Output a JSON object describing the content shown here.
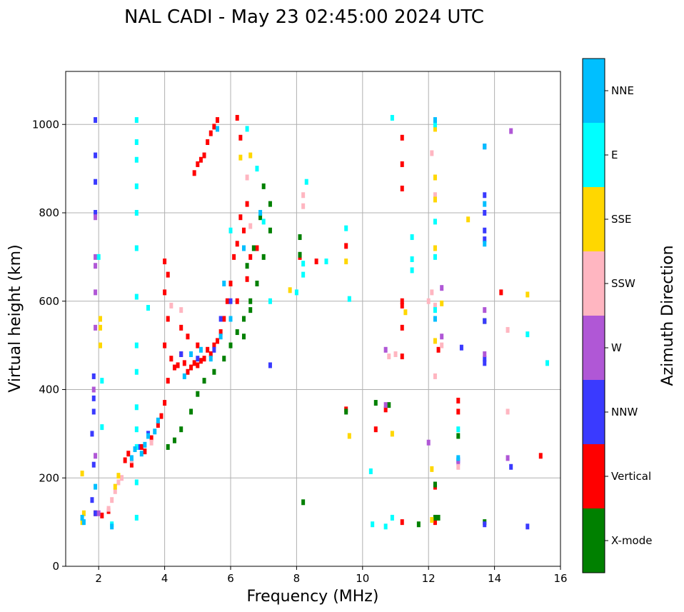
{
  "chart_data": {
    "type": "scatter",
    "title": "NAL CADI - May 23 02:45:00 2024 UTC",
    "xlabel": "Frequency (MHz)",
    "ylabel": "Virtual height (km)",
    "xlim": [
      1,
      16
    ],
    "ylim": [
      0,
      1120
    ],
    "xticks": [
      2,
      4,
      6,
      8,
      10,
      12,
      14,
      16
    ],
    "yticks": [
      0,
      200,
      400,
      600,
      800,
      1000
    ],
    "grid": true,
    "colorbar": {
      "label": "Azimuth Direction",
      "position": "right",
      "categories": [
        {
          "name": "X-mode",
          "color": "#008000"
        },
        {
          "name": "Vertical",
          "color": "#ff0000"
        },
        {
          "name": "NNW",
          "color": "#3a3aff"
        },
        {
          "name": "W",
          "color": "#b057d6"
        },
        {
          "name": "SSW",
          "color": "#ffb6c1"
        },
        {
          "name": "SSE",
          "color": "#ffd700"
        },
        {
          "name": "E",
          "color": "#00ffff"
        },
        {
          "name": "NNE",
          "color": "#00bfff"
        }
      ]
    },
    "series": [
      {
        "name": "Vertical",
        "color": "#ff0000",
        "points": [
          [
            1.9,
            120
          ],
          [
            2.1,
            115
          ],
          [
            2.3,
            125
          ],
          [
            2.8,
            240
          ],
          [
            2.9,
            255
          ],
          [
            3.0,
            230
          ],
          [
            3.3,
            270
          ],
          [
            3.4,
            260
          ],
          [
            3.6,
            290
          ],
          [
            3.8,
            320
          ],
          [
            3.9,
            340
          ],
          [
            4.0,
            370
          ],
          [
            4.1,
            420
          ],
          [
            4.0,
            500
          ],
          [
            4.1,
            560
          ],
          [
            4.0,
            620
          ],
          [
            4.1,
            660
          ],
          [
            4.0,
            690
          ],
          [
            4.2,
            470
          ],
          [
            4.3,
            450
          ],
          [
            4.4,
            455
          ],
          [
            4.5,
            480
          ],
          [
            4.6,
            460
          ],
          [
            4.7,
            440
          ],
          [
            4.8,
            450
          ],
          [
            4.9,
            460
          ],
          [
            5.0,
            455
          ],
          [
            5.1,
            465
          ],
          [
            5.2,
            470
          ],
          [
            5.3,
            490
          ],
          [
            5.4,
            480
          ],
          [
            5.5,
            500
          ],
          [
            5.6,
            510
          ],
          [
            5.7,
            530
          ],
          [
            5.8,
            560
          ],
          [
            5.9,
            600
          ],
          [
            6.0,
            640
          ],
          [
            6.1,
            700
          ],
          [
            6.2,
            730
          ],
          [
            6.3,
            790
          ],
          [
            6.5,
            820
          ],
          [
            6.4,
            760
          ],
          [
            6.6,
            700
          ],
          [
            4.9,
            890
          ],
          [
            5.0,
            910
          ],
          [
            5.1,
            920
          ],
          [
            5.2,
            930
          ],
          [
            5.3,
            960
          ],
          [
            5.4,
            980
          ],
          [
            5.5,
            995
          ],
          [
            5.6,
            1010
          ],
          [
            6.2,
            1015
          ],
          [
            6.3,
            970
          ],
          [
            4.5,
            540
          ],
          [
            4.7,
            520
          ],
          [
            5.0,
            500
          ],
          [
            6.2,
            600
          ],
          [
            6.5,
            650
          ],
          [
            6.8,
            720
          ],
          [
            8.1,
            700
          ],
          [
            8.6,
            690
          ],
          [
            9.5,
            725
          ],
          [
            9.5,
            355
          ],
          [
            10.4,
            310
          ],
          [
            10.7,
            355
          ],
          [
            11.2,
            600
          ],
          [
            11.2,
            590
          ],
          [
            11.2,
            540
          ],
          [
            11.2,
            475
          ],
          [
            11.2,
            100
          ],
          [
            11.2,
            910
          ],
          [
            11.2,
            970
          ],
          [
            11.2,
            855
          ],
          [
            12.2,
            100
          ],
          [
            12.2,
            180
          ],
          [
            12.3,
            490
          ],
          [
            12.9,
            375
          ],
          [
            12.9,
            350
          ],
          [
            14.2,
            620
          ],
          [
            15.4,
            250
          ]
        ]
      },
      {
        "name": "X-mode",
        "color": "#008000",
        "points": [
          [
            4.1,
            270
          ],
          [
            4.3,
            285
          ],
          [
            4.5,
            310
          ],
          [
            4.8,
            350
          ],
          [
            5.0,
            390
          ],
          [
            5.2,
            420
          ],
          [
            5.5,
            440
          ],
          [
            5.8,
            470
          ],
          [
            6.0,
            500
          ],
          [
            6.2,
            530
          ],
          [
            6.4,
            560
          ],
          [
            6.6,
            600
          ],
          [
            6.8,
            640
          ],
          [
            7.0,
            700
          ],
          [
            7.2,
            760
          ],
          [
            7.2,
            820
          ],
          [
            6.5,
            680
          ],
          [
            6.7,
            720
          ],
          [
            7.0,
            860
          ],
          [
            6.9,
            790
          ],
          [
            6.6,
            580
          ],
          [
            6.4,
            520
          ],
          [
            8.1,
            745
          ],
          [
            8.1,
            705
          ],
          [
            8.2,
            145
          ],
          [
            9.5,
            350
          ],
          [
            10.4,
            370
          ],
          [
            10.8,
            365
          ],
          [
            12.2,
            110
          ],
          [
            12.2,
            185
          ],
          [
            12.3,
            110
          ],
          [
            11.7,
            95
          ],
          [
            12.9,
            295
          ],
          [
            13.7,
            100
          ],
          [
            13.7,
            555
          ]
        ]
      },
      {
        "name": "NNW",
        "color": "#3a3aff",
        "points": [
          [
            1.9,
            1010
          ],
          [
            1.9,
            930
          ],
          [
            1.9,
            870
          ],
          [
            1.9,
            800
          ],
          [
            1.85,
            430
          ],
          [
            1.85,
            380
          ],
          [
            1.85,
            350
          ],
          [
            1.8,
            300
          ],
          [
            1.85,
            230
          ],
          [
            1.8,
            150
          ],
          [
            1.9,
            120
          ],
          [
            3.2,
            270
          ],
          [
            3.5,
            300
          ],
          [
            4.5,
            480
          ],
          [
            5.0,
            470
          ],
          [
            5.5,
            490
          ],
          [
            5.7,
            560
          ],
          [
            6.0,
            600
          ],
          [
            7.2,
            455
          ],
          [
            13.7,
            950
          ],
          [
            13.7,
            840
          ],
          [
            13.7,
            800
          ],
          [
            13.7,
            760
          ],
          [
            13.7,
            740
          ],
          [
            13.7,
            470
          ],
          [
            13.7,
            460
          ],
          [
            13.7,
            555
          ],
          [
            13.0,
            495
          ],
          [
            12.9,
            240
          ],
          [
            14.5,
            225
          ],
          [
            15.0,
            90
          ],
          [
            13.7,
            95
          ]
        ]
      },
      {
        "name": "W",
        "color": "#b057d6",
        "points": [
          [
            1.9,
            790
          ],
          [
            1.9,
            700
          ],
          [
            1.9,
            680
          ],
          [
            1.9,
            620
          ],
          [
            1.9,
            540
          ],
          [
            1.85,
            400
          ],
          [
            1.9,
            250
          ],
          [
            2.0,
            120
          ],
          [
            10.7,
            490
          ],
          [
            12.0,
            280
          ],
          [
            12.4,
            520
          ],
          [
            12.4,
            630
          ],
          [
            12.9,
            235
          ],
          [
            13.7,
            580
          ],
          [
            13.7,
            480
          ],
          [
            14.4,
            245
          ],
          [
            14.5,
            985
          ],
          [
            10.7,
            365
          ]
        ]
      },
      {
        "name": "SSW",
        "color": "#ffb6c1",
        "points": [
          [
            2.3,
            130
          ],
          [
            2.4,
            150
          ],
          [
            2.5,
            170
          ],
          [
            2.6,
            190
          ],
          [
            2.7,
            200
          ],
          [
            3.0,
            240
          ],
          [
            3.6,
            280
          ],
          [
            4.2,
            590
          ],
          [
            4.5,
            580
          ],
          [
            6.5,
            880
          ],
          [
            6.6,
            770
          ],
          [
            8.2,
            840
          ],
          [
            8.2,
            815
          ],
          [
            10.8,
            475
          ],
          [
            11.0,
            480
          ],
          [
            12.1,
            935
          ],
          [
            12.1,
            620
          ],
          [
            12.2,
            840
          ],
          [
            12.2,
            430
          ],
          [
            12.4,
            500
          ],
          [
            12.0,
            600
          ],
          [
            12.2,
            590
          ],
          [
            14.4,
            535
          ],
          [
            14.4,
            350
          ],
          [
            12.9,
            225
          ]
        ]
      },
      {
        "name": "SSE",
        "color": "#ffd700",
        "points": [
          [
            1.5,
            210
          ],
          [
            1.55,
            120
          ],
          [
            1.5,
            100
          ],
          [
            2.05,
            560
          ],
          [
            2.05,
            540
          ],
          [
            2.05,
            500
          ],
          [
            2.5,
            180
          ],
          [
            2.6,
            205
          ],
          [
            6.3,
            925
          ],
          [
            6.6,
            930
          ],
          [
            7.8,
            625
          ],
          [
            9.5,
            690
          ],
          [
            9.6,
            295
          ],
          [
            10.9,
            300
          ],
          [
            11.3,
            575
          ],
          [
            12.1,
            220
          ],
          [
            12.1,
            105
          ],
          [
            12.2,
            990
          ],
          [
            12.2,
            880
          ],
          [
            12.2,
            830
          ],
          [
            12.2,
            720
          ],
          [
            12.2,
            510
          ],
          [
            12.4,
            595
          ],
          [
            13.2,
            785
          ],
          [
            15.0,
            615
          ]
        ]
      },
      {
        "name": "E",
        "color": "#00ffff",
        "points": [
          [
            2.1,
            420
          ],
          [
            2.1,
            315
          ],
          [
            2.0,
            700
          ],
          [
            2.4,
            95
          ],
          [
            3.15,
            1010
          ],
          [
            3.15,
            960
          ],
          [
            3.15,
            920
          ],
          [
            3.15,
            860
          ],
          [
            3.15,
            800
          ],
          [
            3.15,
            720
          ],
          [
            3.15,
            610
          ],
          [
            3.15,
            500
          ],
          [
            3.15,
            440
          ],
          [
            3.15,
            360
          ],
          [
            3.15,
            310
          ],
          [
            3.15,
            270
          ],
          [
            3.15,
            190
          ],
          [
            3.15,
            110
          ],
          [
            3.5,
            585
          ],
          [
            6.0,
            760
          ],
          [
            6.5,
            990
          ],
          [
            6.8,
            900
          ],
          [
            7.0,
            780
          ],
          [
            7.2,
            600
          ],
          [
            8.2,
            685
          ],
          [
            8.2,
            660
          ],
          [
            8.3,
            870
          ],
          [
            8.0,
            620
          ],
          [
            8.9,
            690
          ],
          [
            9.5,
            765
          ],
          [
            9.6,
            605
          ],
          [
            10.25,
            215
          ],
          [
            10.3,
            95
          ],
          [
            10.7,
            90
          ],
          [
            10.9,
            1015
          ],
          [
            10.9,
            110
          ],
          [
            11.5,
            745
          ],
          [
            11.5,
            695
          ],
          [
            11.5,
            670
          ],
          [
            12.2,
            1000
          ],
          [
            12.2,
            780
          ],
          [
            12.2,
            700
          ],
          [
            12.2,
            580
          ],
          [
            12.9,
            310
          ],
          [
            15.0,
            525
          ],
          [
            15.6,
            460
          ]
        ]
      },
      {
        "name": "NNE",
        "color": "#00bfff",
        "points": [
          [
            1.5,
            110
          ],
          [
            1.55,
            100
          ],
          [
            1.9,
            180
          ],
          [
            2.4,
            90
          ],
          [
            3.0,
            245
          ],
          [
            3.1,
            265
          ],
          [
            3.3,
            255
          ],
          [
            3.4,
            275
          ],
          [
            3.5,
            295
          ],
          [
            3.7,
            305
          ],
          [
            3.8,
            330
          ],
          [
            4.6,
            430
          ],
          [
            4.8,
            480
          ],
          [
            5.1,
            490
          ],
          [
            5.4,
            470
          ],
          [
            5.7,
            520
          ],
          [
            6.0,
            560
          ],
          [
            5.8,
            640
          ],
          [
            5.6,
            990
          ],
          [
            6.4,
            720
          ],
          [
            6.9,
            800
          ],
          [
            12.2,
            1010
          ],
          [
            12.2,
            560
          ],
          [
            12.9,
            245
          ],
          [
            13.7,
            950
          ],
          [
            13.7,
            820
          ],
          [
            13.7,
            730
          ]
        ]
      }
    ]
  }
}
